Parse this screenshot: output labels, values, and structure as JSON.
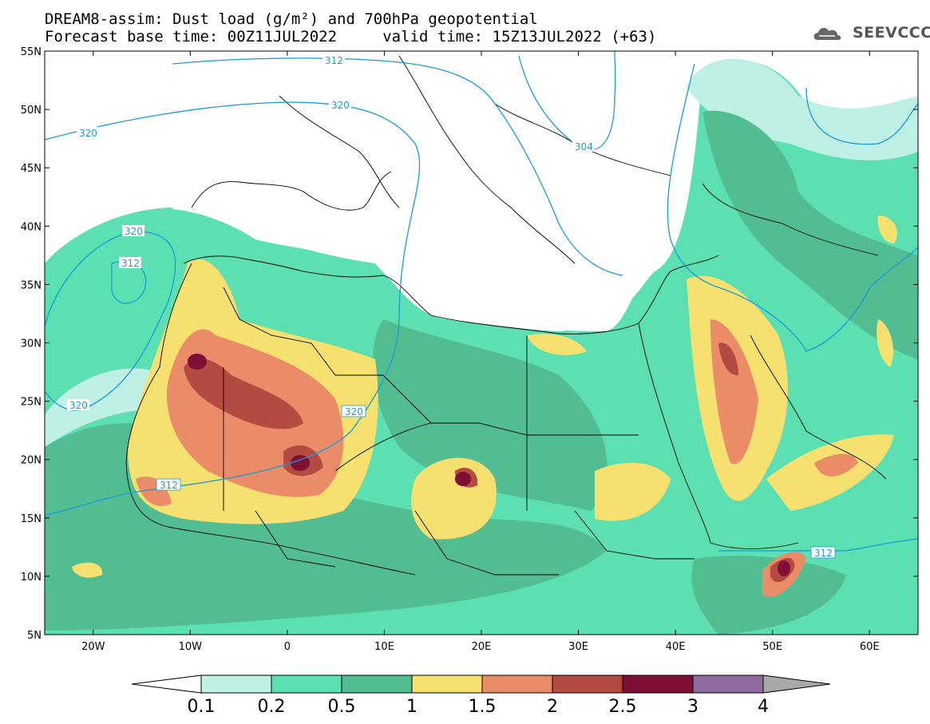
{
  "header": {
    "title_line1": "DREAM8-assim: Dust load (g/m²) and 700hPa geopotential",
    "title_line2": "Forecast base time: 00Z11JUL2022     valid time: 15Z13JUL2022 (+63)",
    "logo_text": "SEEVCCC",
    "logo_icon": "cloud-icon"
  },
  "map_data": {
    "type": "contour-map",
    "region": {
      "lon_min": -25,
      "lon_max": 65,
      "lat_min": 5,
      "lat_max": 55
    },
    "lat_ticks": [
      "5N",
      "10N",
      "15N",
      "20N",
      "25N",
      "30N",
      "35N",
      "40N",
      "45N",
      "50N",
      "55N"
    ],
    "lon_ticks": [
      "20W",
      "10W",
      "0",
      "10E",
      "20E",
      "30E",
      "40E",
      "50E",
      "60E"
    ],
    "geopotential_labels": [
      "312",
      "320",
      "304",
      "320",
      "320",
      "312",
      "320",
      "320",
      "312",
      "312"
    ],
    "colorbar": {
      "levels": [
        "0.1",
        "0.2",
        "0.5",
        "1",
        "1.5",
        "2",
        "2.5",
        "3",
        "4"
      ],
      "colors": [
        "#bff0e6",
        "#5ce0b2",
        "#53bd92",
        "#f5e070",
        "#ea8c68",
        "#b54a40",
        "#7f0f35",
        "#8e6ba1",
        "#a8a8a8"
      ]
    }
  }
}
